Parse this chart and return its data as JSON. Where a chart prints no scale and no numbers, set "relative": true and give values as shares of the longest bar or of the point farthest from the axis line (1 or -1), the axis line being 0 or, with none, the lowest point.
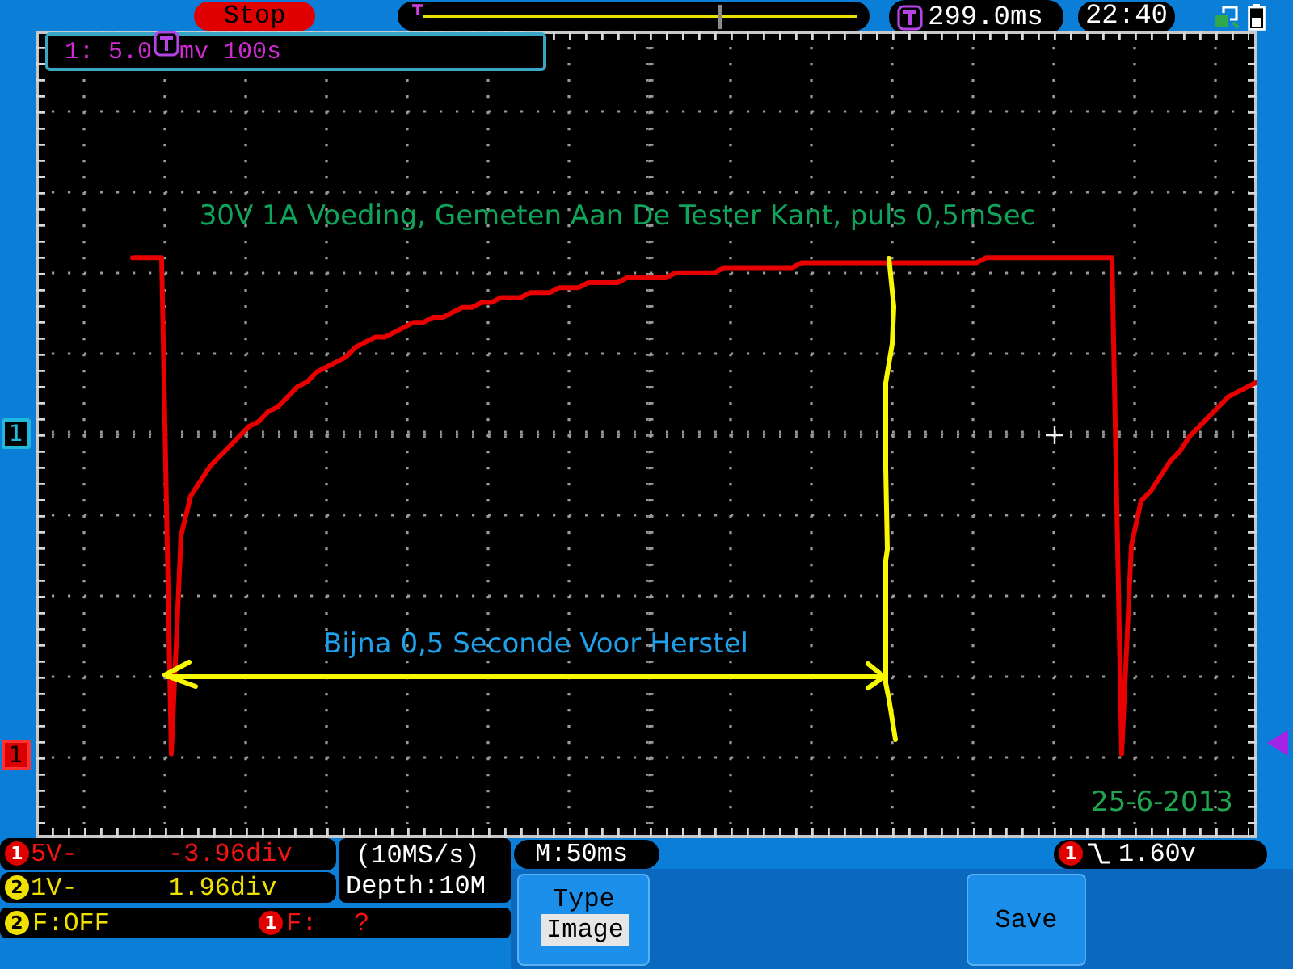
{
  "chart_data": {
    "type": "line",
    "title": "30V 1A Voeding, Gemeten Aan De Tester Kant, puls 0,5mSec",
    "annotations": [
      "Stop",
      "299.0ms",
      "22:40",
      "1: 5.0",
      "mv 100s",
      "Bijna 0,5 Seconde Voor Herstel",
      "25-6-2013",
      "1",
      "5V-",
      "-3.96div",
      "(10MS/s)",
      "M:50ms",
      "1",
      "1.60v",
      "2",
      "1V-",
      "1.96div",
      "Depth:10M",
      "Type",
      "Save",
      "Image",
      "2",
      "F:OFF",
      "1",
      "F:",
      "?",
      "1",
      "1"
    ],
    "categories": [
      null,
      null,
      null,
      null,
      null,
      null,
      null,
      null,
      null,
      null,
      null,
      null,
      null,
      null,
      null,
      null,
      null,
      null,
      null,
      null,
      null,
      null,
      null,
      null,
      null,
      null,
      null,
      null,
      null,
      null,
      null,
      null,
      null,
      null,
      null,
      null,
      null,
      null,
      null,
      null,
      null,
      null,
      null,
      null,
      null,
      null,
      null,
      null,
      null,
      null,
      null,
      null,
      null,
      null,
      null,
      null,
      null,
      null,
      null,
      null,
      null,
      null,
      null,
      null,
      null,
      null,
      null,
      null,
      null,
      null,
      null,
      null,
      null,
      null,
      null,
      null,
      null,
      null,
      null,
      null,
      null,
      null,
      null,
      null,
      null,
      null,
      null,
      null,
      null,
      null,
      null,
      null,
      null,
      null,
      null,
      null,
      null,
      null,
      null,
      null,
      null,
      null,
      null,
      null,
      null,
      null,
      null,
      null,
      null,
      null,
      null,
      null,
      null,
      null,
      null,
      null,
      null,
      null,
      null,
      null,
      null,
      null,
      null,
      null,
      null,
      null,
      null
    ],
    "series": [
      {
        "color": "#e80000",
        "values": [
          null,
          null,
          null,
          null,
          null,
          null,
          null,
          null,
          null,
          null,
          1,
          1,
          1,
          1,
          0,
          0.44,
          0.52,
          0.55,
          0.58,
          0.6,
          0.62,
          0.64,
          0.66,
          0.67,
          0.69,
          0.7,
          0.72,
          0.74,
          0.75,
          0.77,
          0.78,
          0.79,
          0.8,
          0.82,
          0.83,
          0.84,
          0.84,
          0.85,
          0.86,
          0.87,
          0.87,
          0.88,
          0.88,
          0.89,
          0.9,
          0.9,
          0.91,
          0.91,
          0.92,
          0.92,
          0.92,
          0.93,
          0.93,
          0.93,
          0.94,
          0.94,
          0.94,
          0.95,
          0.95,
          0.95,
          0.95,
          0.96,
          0.96,
          0.96,
          0.96,
          0.96,
          0.97,
          0.97,
          0.97,
          0.97,
          0.97,
          0.98,
          0.98,
          0.98,
          0.98,
          0.98,
          0.98,
          0.98,
          0.98,
          0.99,
          0.99,
          0.99,
          0.99,
          0.99,
          0.99,
          0.99,
          0.99,
          0.99,
          0.99,
          0.99,
          0.99,
          0.99,
          0.99,
          0.99,
          0.99,
          0.99,
          0.99,
          0.99,
          1,
          1,
          1,
          1,
          1,
          1,
          1,
          1,
          1,
          1,
          1,
          1,
          1,
          1,
          0,
          0.42,
          0.51,
          0.53,
          0.56,
          0.59,
          0.61,
          0.64,
          0.66,
          0.68,
          0.7,
          0.72,
          0.73,
          0.74,
          0.75
        ]
      }
    ],
    "relative": true,
    "grid": true,
    "tick_labels": false,
    "marker": "none",
    "line_style": "solid"
  }
}
